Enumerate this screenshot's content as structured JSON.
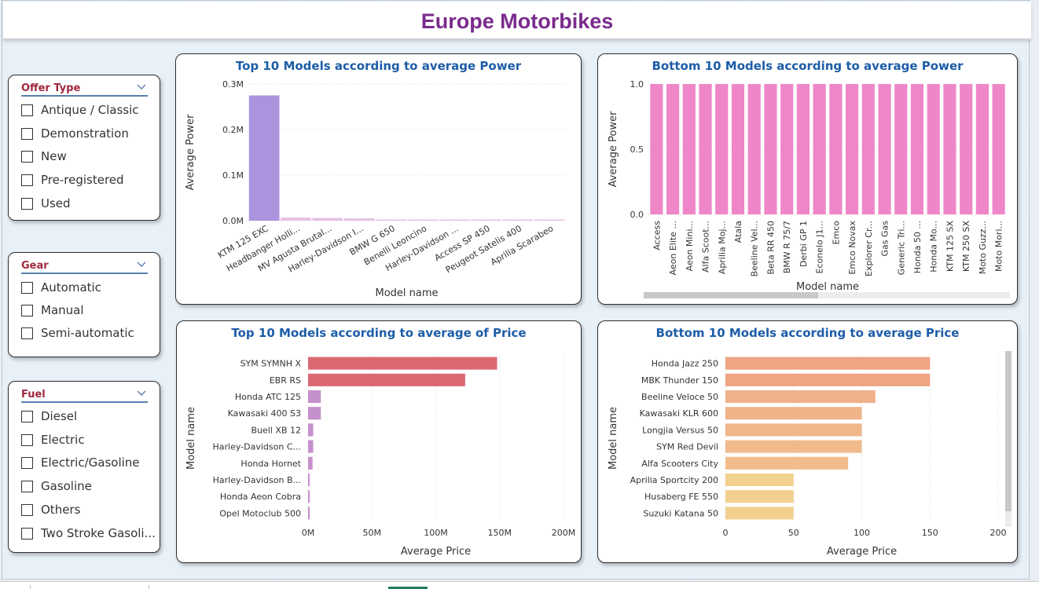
{
  "dashboard": {
    "title": "Europe Motorbikes"
  },
  "slicers": [
    {
      "name": "offer-type",
      "title": "Offer Type",
      "items": [
        "Antique / Classic",
        "Demonstration",
        "New",
        "Pre-registered",
        "Used"
      ]
    },
    {
      "name": "gear",
      "title": "Gear",
      "items": [
        "Automatic",
        "Manual",
        "Semi-automatic"
      ]
    },
    {
      "name": "fuel",
      "title": "Fuel",
      "items": [
        "Diesel",
        "Electric",
        "Electric/Gasoline",
        "Gasoline",
        "Others",
        "Two Stroke Gasoli..."
      ]
    }
  ],
  "colors": {
    "title": "#7a2a8c",
    "panel_title": "#1d5da8",
    "slicer_title": "#a0283c",
    "top_power_bar": "#ab93de",
    "bottom_power_bar": "#ee86c8",
    "scrollbar": "#c8c8c8"
  },
  "chart_data": [
    {
      "type": "bar",
      "orientation": "vertical",
      "title": "Top 10 Models according to average Power",
      "xlabel": "Model name",
      "ylabel": "Average Power",
      "categories": [
        "KTM 125 EXC",
        "Headbanger Holli...",
        "MV Agusta Brutal...",
        "Harley-Davidson I...",
        "BMW G 650",
        "Benelli Leoncino",
        "Harley-Davidson ...",
        "Access SP 450",
        "Peugeot Satelis 400",
        "Aprilia Scarabeo"
      ],
      "values": [
        275000,
        7000,
        6000,
        5000,
        1500,
        1200,
        1000,
        900,
        800,
        700
      ],
      "yticks": [
        "0.0M",
        "0.1M",
        "0.2M",
        "0.3M"
      ],
      "ylim": [
        0,
        300000
      ],
      "grid": true
    },
    {
      "type": "bar",
      "orientation": "vertical",
      "title": "Bottom 10 Models according to average Power",
      "xlabel": "Model name",
      "ylabel": "Average Power",
      "categories": [
        "Access",
        "Aeon Elite ...",
        "Aeon Mini...",
        "Alfa Scoot...",
        "Aprilia Moj...",
        "Atala",
        "Beeline Vel...",
        "Beta RR 450",
        "BMW R 75/7",
        "Derbi GP 1",
        "Econelo J1...",
        "Emco",
        "Emco Novax",
        "Explorer Cr...",
        "Gas Gas",
        "Generic Tri...",
        "Honda 50 ...",
        "Honda Mo...",
        "KTM 125 SX",
        "KTM 250 SX",
        "Moto Guzz...",
        "Moto Mori..."
      ],
      "values": [
        1,
        1,
        1,
        1,
        1,
        1,
        1,
        1,
        1,
        1,
        1,
        1,
        1,
        1,
        1,
        1,
        1,
        1,
        1,
        1,
        1,
        1
      ],
      "yticks": [
        "0.0",
        "0.5",
        "1.0"
      ],
      "ylim": [
        0,
        1
      ],
      "grid": true
    },
    {
      "type": "bar",
      "orientation": "horizontal",
      "title": "Top 10 Models according to average of Price",
      "xlabel": "Average Price",
      "ylabel": "Model name",
      "categories": [
        "SYM SYMNH X",
        "EBR RS",
        "Honda ATC 125",
        "Kawasaki 400 S3",
        "Buell XB 12",
        "Harley-Davidson C...",
        "Honda Hornet",
        "Harley-Davidson B...",
        "Honda Aeon Cobra",
        "Opel Motoclub 500"
      ],
      "values": [
        148000000,
        123000000,
        10000000,
        10000000,
        4000000,
        4000000,
        3500000,
        1200000,
        1000000,
        800000
      ],
      "xticks": [
        "0M",
        "50M",
        "100M",
        "150M",
        "200M"
      ],
      "xlim": [
        0,
        200000000
      ],
      "bar_colors": [
        "#dc6874",
        "#dc6874",
        "#c690cc",
        "#c690cc",
        "#c690cc",
        "#c690cc",
        "#c690cc",
        "#c690cc",
        "#c690cc",
        "#c690cc"
      ],
      "grid": true
    },
    {
      "type": "bar",
      "orientation": "horizontal",
      "title": "Bottom 10 Models according to average Price",
      "xlabel": "Average Price",
      "ylabel": "Model name",
      "categories": [
        "Honda Jazz 250",
        "MBK Thunder 150",
        "Beeline Veloce 50",
        "Kawasaki KLR 600",
        "Longjia Versus 50",
        "SYM Red Devil",
        "Alfa Scooters City",
        "Aprilia Sportcity 200",
        "Husaberg FE 550",
        "Suzuki Katana 50"
      ],
      "values": [
        150,
        150,
        110,
        100,
        100,
        100,
        90,
        50,
        50,
        50
      ],
      "xticks": [
        "0",
        "50",
        "100",
        "150",
        "200"
      ],
      "xlim": [
        0,
        200
      ],
      "bar_colors": [
        "#efa482",
        "#efa482",
        "#f0b08a",
        "#f0b48a",
        "#f0b68c",
        "#f1ba8c",
        "#f1bc8c",
        "#f2d090",
        "#f2d090",
        "#f2d090"
      ],
      "grid": true
    }
  ]
}
